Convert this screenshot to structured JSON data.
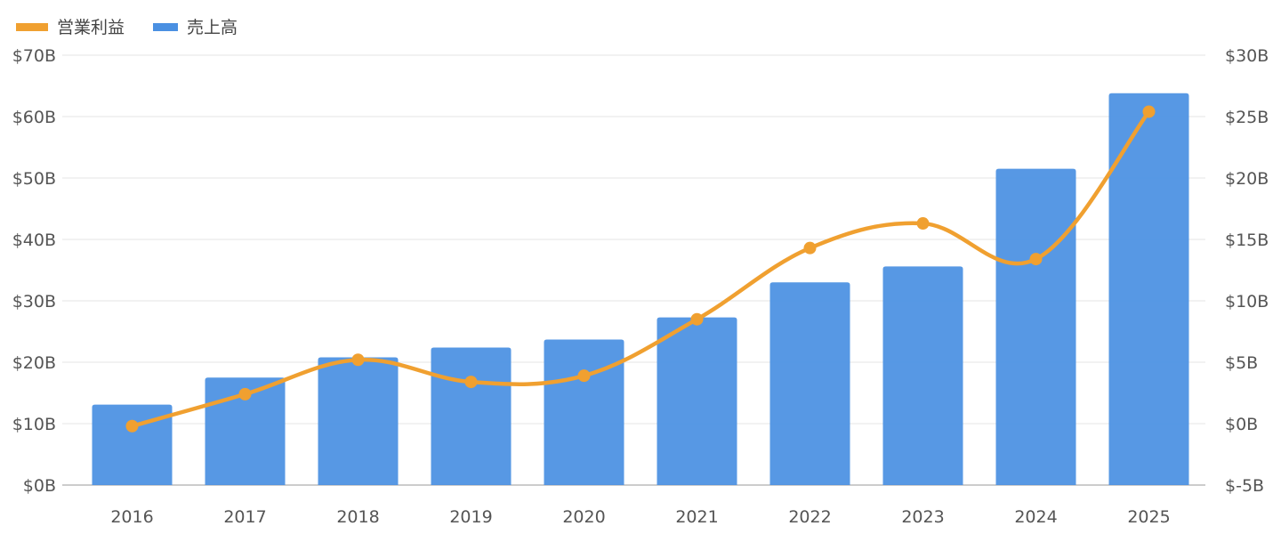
{
  "chart_data": {
    "type": "bar",
    "categories": [
      "2016",
      "2017",
      "2018",
      "2019",
      "2020",
      "2021",
      "2022",
      "2023",
      "2024",
      "2025"
    ],
    "series": [
      {
        "name": "売上高",
        "type": "bar",
        "axis": "left",
        "color": "#4a90e2",
        "values": [
          13.1,
          17.5,
          20.8,
          22.4,
          23.7,
          27.3,
          33.0,
          35.6,
          51.5,
          63.8
        ]
      },
      {
        "name": "営業利益",
        "type": "line",
        "axis": "right",
        "color": "#f0a030",
        "smooth": true,
        "values": [
          -0.2,
          2.4,
          5.2,
          3.4,
          3.9,
          8.5,
          14.3,
          16.3,
          13.4,
          25.4
        ]
      }
    ],
    "legend": {
      "position": "top-left",
      "items": [
        "営業利益",
        "売上高"
      ]
    },
    "y_left": {
      "ylim": [
        0,
        70
      ],
      "ticks": [
        0,
        10,
        20,
        30,
        40,
        50,
        60,
        70
      ],
      "tick_labels": [
        "$0B",
        "$10B",
        "$20B",
        "$30B",
        "$40B",
        "$50B",
        "$60B",
        "$70B"
      ]
    },
    "y_right": {
      "ylim": [
        -5,
        30
      ],
      "ticks": [
        -5,
        0,
        5,
        10,
        15,
        20,
        25,
        30
      ],
      "tick_labels": [
        "$-5B",
        "$0B",
        "$5B",
        "$10B",
        "$15B",
        "$20B",
        "$25B",
        "$30B"
      ]
    },
    "grid": true
  }
}
